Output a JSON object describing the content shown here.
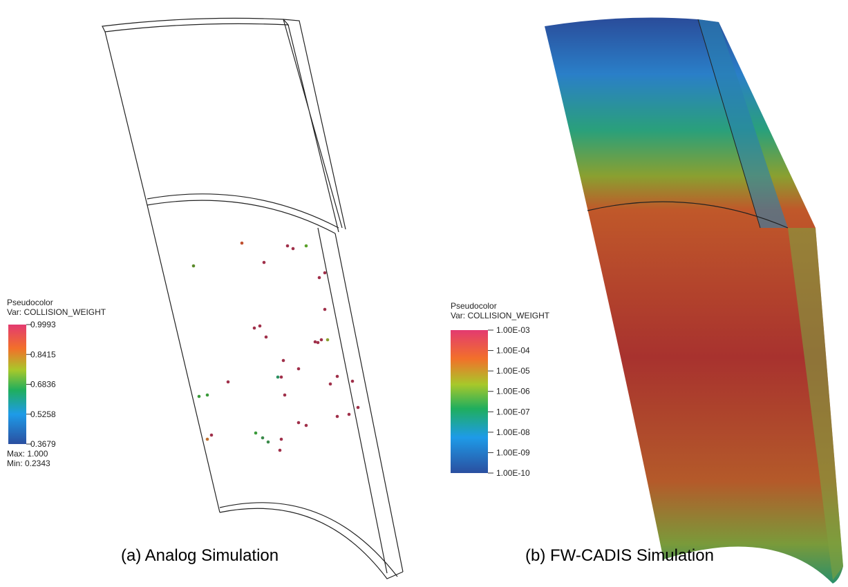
{
  "panels": [
    {
      "legend": {
        "title": "Pseudocolor",
        "variable": "Var: COLLISION_WEIGHT",
        "ticks": [
          "0.9993",
          "0.8415",
          "0.6836",
          "0.5258",
          "0.3679"
        ],
        "max": "Max: 1.000",
        "min": "Min: 0.2343"
      },
      "caption": "(a)  Analog Simulation"
    },
    {
      "legend": {
        "title": "Pseudocolor",
        "variable": "Var: COLLISION_WEIGHT",
        "ticks": [
          "1.00E-03",
          "1.00E-04",
          "1.00E-05",
          "1.00E-06",
          "1.00E-07",
          "1.00E-08",
          "1.00E-09",
          "1.00E-10"
        ]
      },
      "caption": "(b) FW-CADIS Simulation"
    }
  ]
}
